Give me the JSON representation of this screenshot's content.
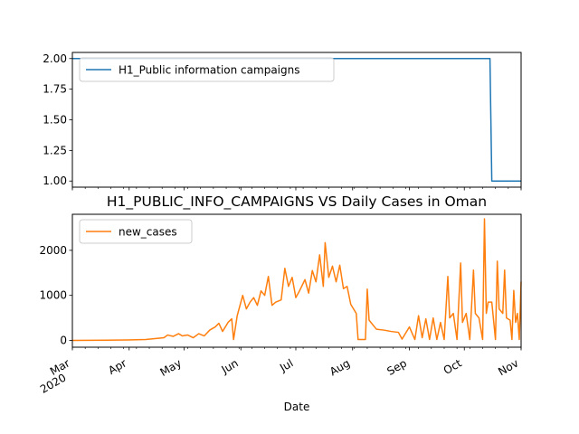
{
  "chart_data": [
    {
      "type": "line",
      "title": "",
      "xlabel": "",
      "ylabel": "",
      "ylim": [
        0.95,
        2.05
      ],
      "yticks": [
        "1.00",
        "1.25",
        "1.50",
        "1.75",
        "2.00"
      ],
      "ytick_values": [
        1.0,
        1.25,
        1.5,
        1.75,
        2.0
      ],
      "x_range": [
        "2020-03-01",
        "2020-11-01"
      ],
      "legend_position": "top-left",
      "series": [
        {
          "name": "H1_Public information campaigns",
          "color": "#1f77b4",
          "points": [
            [
              "2020-03-01",
              2.0
            ],
            [
              "2020-10-15",
              2.0
            ],
            [
              "2020-10-16",
              1.0
            ],
            [
              "2020-11-01",
              1.0
            ]
          ]
        }
      ]
    },
    {
      "type": "line",
      "title": "H1_PUBLIC_INFO_CAMPAIGNS VS Daily Cases in Oman",
      "xlabel": "Date",
      "ylabel": "",
      "ylim": [
        -150,
        2800
      ],
      "yticks": [
        "0",
        "1000",
        "2000"
      ],
      "ytick_values": [
        0,
        1000,
        2000
      ],
      "x_range": [
        "2020-03-01",
        "2020-11-01"
      ],
      "x_tick_labels": [
        {
          "date": "2020-03-01",
          "label": "Mar",
          "sub": "2020"
        },
        {
          "date": "2020-04-01",
          "label": "Apr"
        },
        {
          "date": "2020-05-01",
          "label": "May"
        },
        {
          "date": "2020-06-01",
          "label": "Jun"
        },
        {
          "date": "2020-07-01",
          "label": "Jul"
        },
        {
          "date": "2020-08-01",
          "label": "Aug"
        },
        {
          "date": "2020-09-01",
          "label": "Sep"
        },
        {
          "date": "2020-10-01",
          "label": "Oct"
        },
        {
          "date": "2020-11-01",
          "label": "Nov"
        }
      ],
      "legend_position": "top-left",
      "series": [
        {
          "name": "new_cases",
          "color": "#ff7f0e",
          "points": [
            [
              "2020-03-01",
              0
            ],
            [
              "2020-03-10",
              2
            ],
            [
              "2020-03-20",
              5
            ],
            [
              "2020-03-31",
              10
            ],
            [
              "2020-04-05",
              15
            ],
            [
              "2020-04-10",
              20
            ],
            [
              "2020-04-15",
              40
            ],
            [
              "2020-04-20",
              60
            ],
            [
              "2020-04-22",
              120
            ],
            [
              "2020-04-25",
              90
            ],
            [
              "2020-04-28",
              150
            ],
            [
              "2020-04-30",
              100
            ],
            [
              "2020-05-03",
              120
            ],
            [
              "2020-05-06",
              60
            ],
            [
              "2020-05-09",
              150
            ],
            [
              "2020-05-12",
              100
            ],
            [
              "2020-05-15",
              230
            ],
            [
              "2020-05-18",
              300
            ],
            [
              "2020-05-20",
              380
            ],
            [
              "2020-05-22",
              200
            ],
            [
              "2020-05-25",
              400
            ],
            [
              "2020-05-27",
              480
            ],
            [
              "2020-05-28",
              20
            ],
            [
              "2020-05-30",
              550
            ],
            [
              "2020-06-02",
              1000
            ],
            [
              "2020-06-04",
              700
            ],
            [
              "2020-06-06",
              850
            ],
            [
              "2020-06-08",
              950
            ],
            [
              "2020-06-10",
              780
            ],
            [
              "2020-06-12",
              1100
            ],
            [
              "2020-06-14",
              1000
            ],
            [
              "2020-06-16",
              1420
            ],
            [
              "2020-06-18",
              780
            ],
            [
              "2020-06-20",
              850
            ],
            [
              "2020-06-23",
              900
            ],
            [
              "2020-06-25",
              1600
            ],
            [
              "2020-06-27",
              1200
            ],
            [
              "2020-06-29",
              1400
            ],
            [
              "2020-07-01",
              950
            ],
            [
              "2020-07-03",
              1100
            ],
            [
              "2020-07-06",
              1350
            ],
            [
              "2020-07-08",
              1050
            ],
            [
              "2020-07-10",
              1550
            ],
            [
              "2020-07-12",
              1300
            ],
            [
              "2020-07-14",
              1900
            ],
            [
              "2020-07-16",
              1200
            ],
            [
              "2020-07-17",
              2170
            ],
            [
              "2020-07-19",
              1400
            ],
            [
              "2020-07-21",
              1650
            ],
            [
              "2020-07-23",
              1300
            ],
            [
              "2020-07-25",
              1670
            ],
            [
              "2020-07-27",
              1150
            ],
            [
              "2020-07-29",
              1200
            ],
            [
              "2020-07-31",
              800
            ],
            [
              "2020-08-03",
              600
            ],
            [
              "2020-08-04",
              20
            ],
            [
              "2020-08-08",
              20
            ],
            [
              "2020-08-09",
              1140
            ],
            [
              "2020-08-10",
              450
            ],
            [
              "2020-08-14",
              250
            ],
            [
              "2020-08-18",
              230
            ],
            [
              "2020-08-22",
              200
            ],
            [
              "2020-08-26",
              180
            ],
            [
              "2020-08-28",
              30
            ],
            [
              "2020-09-01",
              300
            ],
            [
              "2020-09-04",
              20
            ],
            [
              "2020-09-06",
              550
            ],
            [
              "2020-09-08",
              60
            ],
            [
              "2020-09-10",
              480
            ],
            [
              "2020-09-12",
              20
            ],
            [
              "2020-09-14",
              500
            ],
            [
              "2020-09-16",
              20
            ],
            [
              "2020-09-18",
              400
            ],
            [
              "2020-09-20",
              20
            ],
            [
              "2020-09-22",
              1420
            ],
            [
              "2020-09-23",
              500
            ],
            [
              "2020-09-25",
              600
            ],
            [
              "2020-09-27",
              20
            ],
            [
              "2020-09-29",
              1720
            ],
            [
              "2020-09-30",
              400
            ],
            [
              "2020-10-02",
              600
            ],
            [
              "2020-10-04",
              20
            ],
            [
              "2020-10-06",
              1560
            ],
            [
              "2020-10-07",
              600
            ],
            [
              "2020-10-09",
              500
            ],
            [
              "2020-10-11",
              20
            ],
            [
              "2020-10-12",
              2700
            ],
            [
              "2020-10-13",
              600
            ],
            [
              "2020-10-14",
              850
            ],
            [
              "2020-10-16",
              850
            ],
            [
              "2020-10-18",
              20
            ],
            [
              "2020-10-19",
              1760
            ],
            [
              "2020-10-20",
              700
            ],
            [
              "2020-10-22",
              600
            ],
            [
              "2020-10-23",
              1560
            ],
            [
              "2020-10-24",
              500
            ],
            [
              "2020-10-26",
              450
            ],
            [
              "2020-10-27",
              20
            ],
            [
              "2020-10-28",
              1110
            ],
            [
              "2020-10-29",
              400
            ],
            [
              "2020-10-30",
              600
            ],
            [
              "2020-10-31",
              20
            ],
            [
              "2020-11-01",
              1310
            ]
          ]
        }
      ]
    }
  ]
}
